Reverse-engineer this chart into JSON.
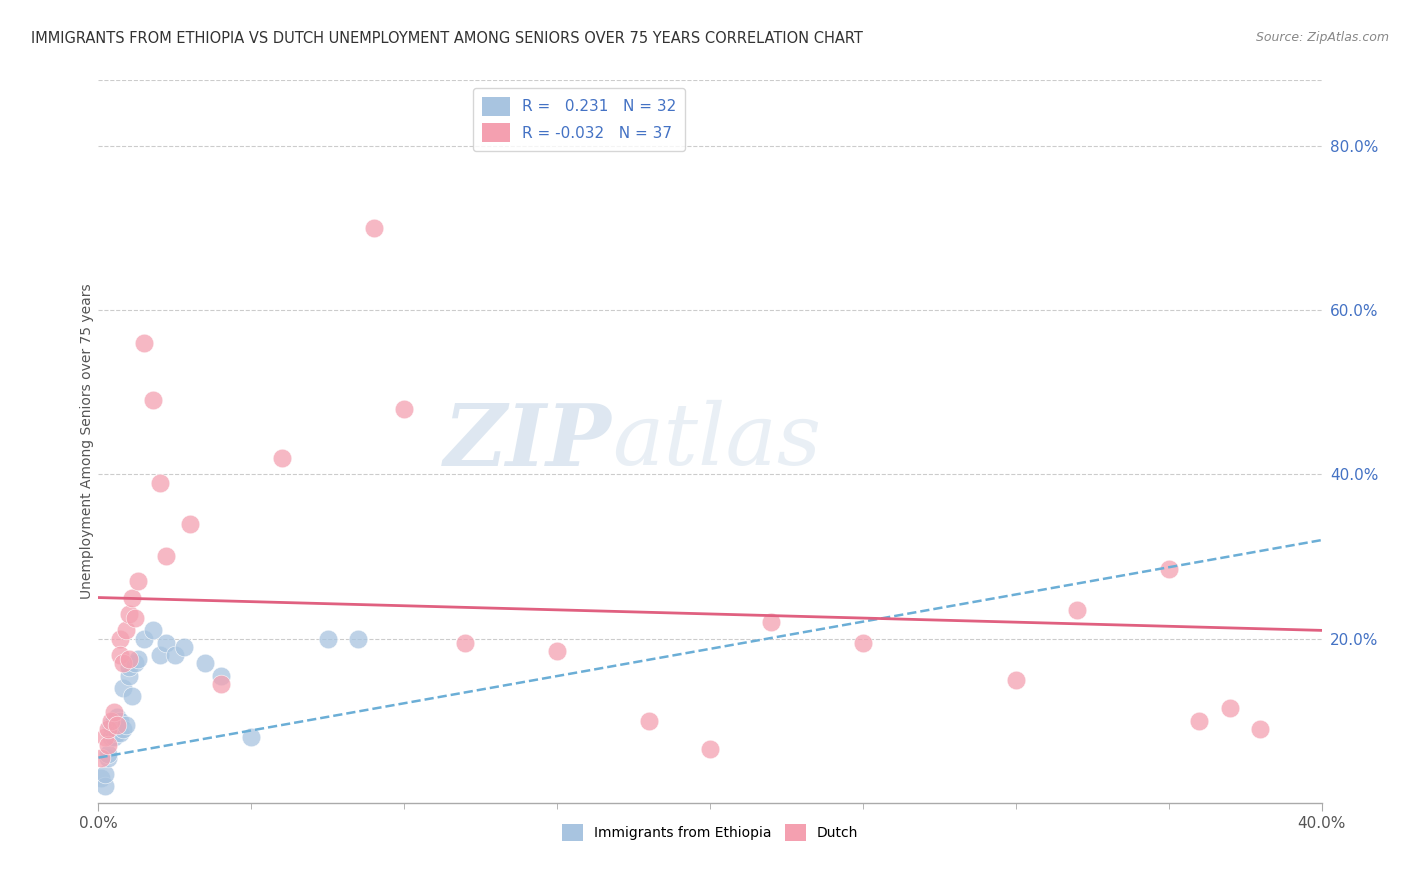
{
  "title": "IMMIGRANTS FROM ETHIOPIA VS DUTCH UNEMPLOYMENT AMONG SENIORS OVER 75 YEARS CORRELATION CHART",
  "source": "Source: ZipAtlas.com",
  "ylabel": "Unemployment Among Seniors over 75 years",
  "xlim": [
    0,
    0.4
  ],
  "ylim": [
    0,
    0.88
  ],
  "xtick_positions": [
    0.0,
    0.4
  ],
  "xtick_labels": [
    "0.0%",
    "40.0%"
  ],
  "yticks_right": [
    0.2,
    0.4,
    0.6,
    0.8
  ],
  "r_blue": 0.231,
  "n_blue": 32,
  "r_pink": -0.032,
  "n_pink": 37,
  "blue_color": "#a8c4e0",
  "pink_color": "#f4a0b0",
  "blue_line_color": "#6baed6",
  "pink_line_color": "#e06080",
  "legend_label_blue": "Immigrants from Ethiopia",
  "legend_label_pink": "Dutch",
  "watermark_zip": "ZIP",
  "watermark_atlas": "atlas",
  "blue_x": [
    0.001,
    0.002,
    0.002,
    0.003,
    0.003,
    0.004,
    0.004,
    0.005,
    0.005,
    0.006,
    0.006,
    0.007,
    0.007,
    0.008,
    0.008,
    0.009,
    0.01,
    0.01,
    0.011,
    0.012,
    0.013,
    0.015,
    0.018,
    0.02,
    0.022,
    0.025,
    0.028,
    0.035,
    0.04,
    0.05,
    0.075,
    0.085
  ],
  "blue_y": [
    0.03,
    0.02,
    0.035,
    0.055,
    0.06,
    0.08,
    0.095,
    0.08,
    0.1,
    0.085,
    0.105,
    0.085,
    0.1,
    0.09,
    0.14,
    0.095,
    0.155,
    0.165,
    0.13,
    0.17,
    0.175,
    0.2,
    0.21,
    0.18,
    0.195,
    0.18,
    0.19,
    0.17,
    0.155,
    0.08,
    0.2,
    0.2
  ],
  "pink_x": [
    0.001,
    0.002,
    0.003,
    0.003,
    0.004,
    0.005,
    0.006,
    0.007,
    0.007,
    0.008,
    0.009,
    0.01,
    0.01,
    0.011,
    0.012,
    0.013,
    0.015,
    0.018,
    0.02,
    0.022,
    0.03,
    0.04,
    0.06,
    0.09,
    0.1,
    0.12,
    0.15,
    0.18,
    0.2,
    0.22,
    0.25,
    0.3,
    0.32,
    0.35,
    0.36,
    0.37,
    0.38
  ],
  "pink_y": [
    0.055,
    0.08,
    0.07,
    0.09,
    0.1,
    0.11,
    0.095,
    0.2,
    0.18,
    0.17,
    0.21,
    0.175,
    0.23,
    0.25,
    0.225,
    0.27,
    0.56,
    0.49,
    0.39,
    0.3,
    0.34,
    0.145,
    0.42,
    0.7,
    0.48,
    0.195,
    0.185,
    0.1,
    0.065,
    0.22,
    0.195,
    0.15,
    0.235,
    0.285,
    0.1,
    0.115,
    0.09
  ],
  "blue_trendline_x": [
    0.0,
    0.4
  ],
  "blue_trendline_y": [
    0.055,
    0.32
  ],
  "pink_trendline_x": [
    0.0,
    0.4
  ],
  "pink_trendline_y": [
    0.25,
    0.21
  ]
}
